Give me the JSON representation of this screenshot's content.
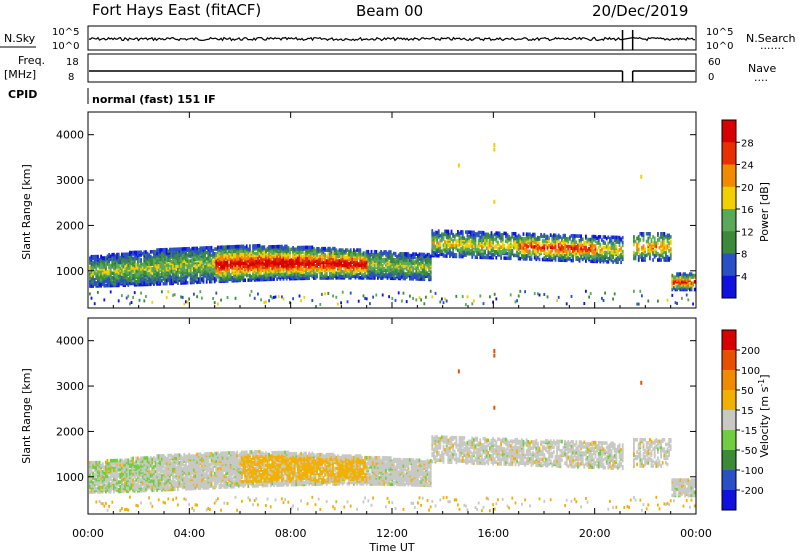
{
  "header": {
    "station": "Fort Hays East (fitACF)",
    "beam": "Beam 00",
    "date": "20/Dec/2019"
  },
  "left_labels": {
    "nsky": "N.Sky",
    "freq": "Freq.",
    "freq_unit": "[MHz]",
    "cpid": "CPID"
  },
  "right_labels": {
    "nsearch": "N.Search",
    "nsearch_dots": "·······",
    "nave": "Nave",
    "nave_dots": "····"
  },
  "cpid_text": "normal (fast) 151 IF",
  "chart_data": [
    {
      "type": "line",
      "panel": "noise",
      "y_left_ticks": [
        "10^5",
        "10^0"
      ],
      "y_right_ticks": [
        "10^5",
        "10^0"
      ]
    },
    {
      "type": "line",
      "panel": "frequency",
      "y_left_ticks": [
        "18",
        "8"
      ],
      "y_right_ticks": [
        "60",
        "0"
      ]
    },
    {
      "type": "heatmap",
      "panel": "power",
      "ylabel": "Slant Range [km]",
      "yticks": [
        "4000",
        "3000",
        "2000",
        "1000"
      ],
      "ylim": [
        180,
        4500
      ],
      "colorbar_label": "Power [dB]",
      "colorbar_ticks": [
        "28",
        "24",
        "20",
        "16",
        "12",
        "8",
        "4"
      ],
      "colors": [
        "#1010e0",
        "#2a50c8",
        "#3a8a3a",
        "#5aa85a",
        "#f2d000",
        "#f08a00",
        "#e83000",
        "#d80000"
      ]
    },
    {
      "type": "heatmap",
      "panel": "velocity",
      "ylabel": "Slant Range [km]",
      "yticks": [
        "4000",
        "3000",
        "2000",
        "1000"
      ],
      "ylim": [
        180,
        4500
      ],
      "colorbar_label": "Velocity [m s^-1]",
      "colorbar_ticks": [
        "200",
        "100",
        "50",
        "15",
        "-15",
        "-50",
        "-100",
        "-200"
      ],
      "colors": [
        "#1010e0",
        "#2a50c8",
        "#3a8a3a",
        "#70cc40",
        "#c8c8c4",
        "#f2b000",
        "#f08a00",
        "#e85000",
        "#d80000"
      ]
    }
  ],
  "time_axis": {
    "ticks": [
      "00:00",
      "04:00",
      "08:00",
      "12:00",
      "16:00",
      "20:00",
      "00:00"
    ],
    "label": "Time UT"
  }
}
